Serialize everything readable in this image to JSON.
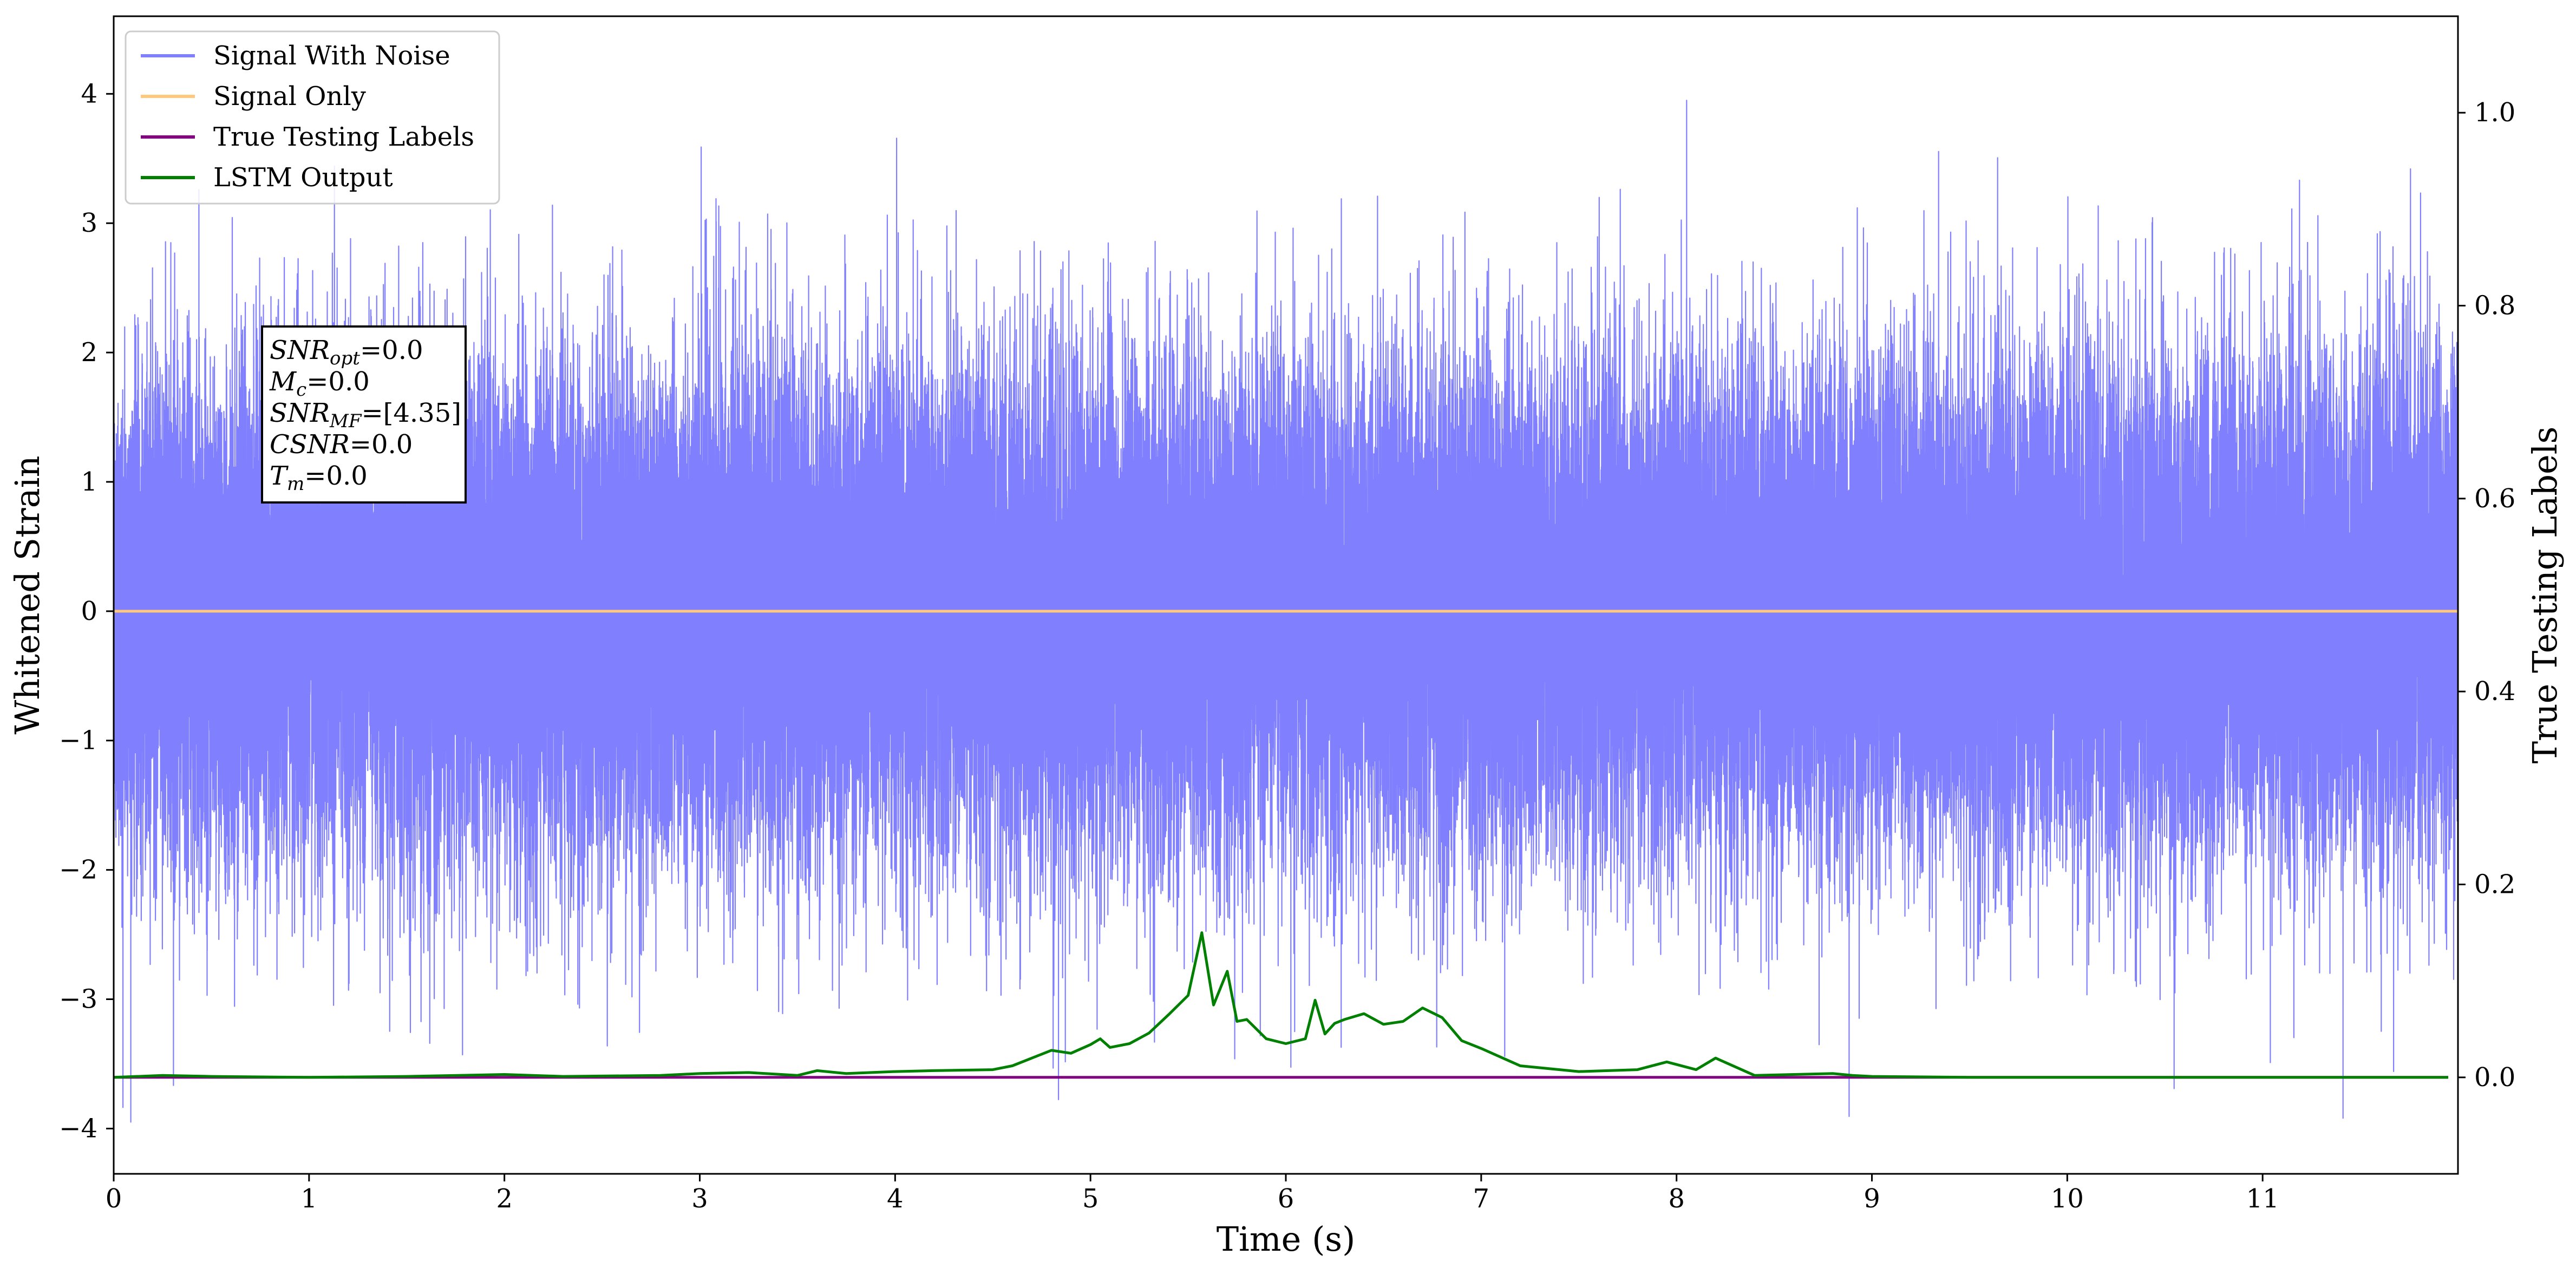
{
  "chart_data": {
    "type": "line",
    "title": "",
    "xlabel": "Time (s)",
    "ylabel": "Whitened Strain",
    "y2label": "True Testing Labels",
    "xlim": [
      0,
      12
    ],
    "ylim": [
      -4.35,
      4.6
    ],
    "y2lim": [
      -0.1,
      1.1
    ],
    "x_ticks": [
      0,
      1,
      2,
      3,
      4,
      5,
      6,
      7,
      8,
      9,
      10,
      11
    ],
    "y_ticks": [
      -4,
      -3,
      -2,
      -1,
      0,
      1,
      2,
      3,
      4
    ],
    "y2_ticks": [
      0.0,
      0.2,
      0.4,
      0.6,
      0.8,
      1.0
    ],
    "grid": false,
    "legend_position": "top-left",
    "annotation": [
      {
        "base": "SNR",
        "sub": "opt",
        "rest": "=0.0"
      },
      {
        "base": "M",
        "sub": "c",
        "rest": "=0.0"
      },
      {
        "base": "SNR",
        "sub": "MF",
        "rest": "=[4.35]"
      },
      {
        "base": "CSNR",
        "sub": "",
        "rest": "=0.0"
      },
      {
        "base": "T",
        "sub": "m",
        "rest": "=0.0"
      }
    ],
    "series": [
      {
        "name": "Signal With Noise",
        "color": "#8080ff",
        "axis": "left",
        "kind": "gaussian-noise",
        "duration_s": 12,
        "sample_rate_hz": 4096,
        "std": 0.95,
        "min": -3.95,
        "max": 3.95
      },
      {
        "name": "Signal Only",
        "color": "#ffc87a",
        "axis": "left",
        "x": [
          0,
          12
        ],
        "y": [
          0,
          0
        ]
      },
      {
        "name": "True Testing Labels",
        "color": "#800080",
        "axis": "right",
        "x": [
          0,
          11.95
        ],
        "y": [
          0,
          0
        ]
      },
      {
        "name": "LSTM Output",
        "color": "#008000",
        "axis": "right",
        "x": [
          0,
          0.25,
          0.5,
          1.0,
          1.5,
          2.0,
          2.3,
          2.8,
          3.0,
          3.25,
          3.5,
          3.6,
          3.75,
          4.0,
          4.2,
          4.5,
          4.6,
          4.7,
          4.8,
          4.9,
          5.0,
          5.05,
          5.1,
          5.2,
          5.3,
          5.4,
          5.5,
          5.57,
          5.63,
          5.7,
          5.75,
          5.8,
          5.9,
          6.0,
          6.1,
          6.15,
          6.2,
          6.25,
          6.3,
          6.4,
          6.5,
          6.6,
          6.7,
          6.8,
          6.9,
          7.0,
          7.2,
          7.5,
          7.8,
          7.95,
          8.1,
          8.2,
          8.4,
          8.6,
          8.8,
          8.9,
          9.0,
          9.5,
          10.0,
          11.0,
          11.95
        ],
        "y": [
          0.0,
          0.002,
          0.001,
          0.0,
          0.001,
          0.003,
          0.001,
          0.002,
          0.004,
          0.005,
          0.002,
          0.007,
          0.004,
          0.006,
          0.007,
          0.008,
          0.012,
          0.02,
          0.028,
          0.025,
          0.034,
          0.04,
          0.031,
          0.035,
          0.046,
          0.065,
          0.085,
          0.15,
          0.075,
          0.11,
          0.058,
          0.06,
          0.04,
          0.035,
          0.04,
          0.08,
          0.045,
          0.056,
          0.06,
          0.066,
          0.055,
          0.058,
          0.072,
          0.062,
          0.038,
          0.03,
          0.012,
          0.006,
          0.008,
          0.016,
          0.008,
          0.02,
          0.002,
          0.003,
          0.004,
          0.002,
          0.001,
          0.0,
          0.0,
          0.0,
          0.0
        ]
      }
    ]
  }
}
